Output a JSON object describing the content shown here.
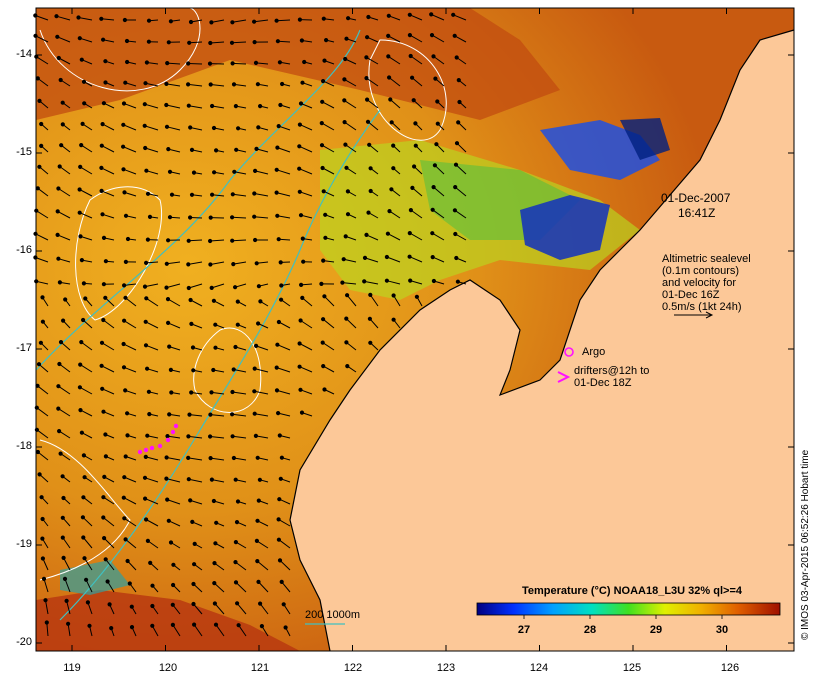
{
  "map": {
    "y_ticks": [
      "-14",
      "-15",
      "-16",
      "-17",
      "-18",
      "-19",
      "-20"
    ],
    "x_ticks": [
      "119",
      "120",
      "121",
      "122",
      "123",
      "124",
      "125",
      "126"
    ],
    "date_line1": "01-Dec-2007",
    "date_line2": "16:41Z",
    "altimetric_lines": [
      "Altimetric sealevel",
      "(0.1m contours)",
      "and velocity for",
      "01-Dec 16Z",
      "0.5m/s (1kt 24h)"
    ],
    "argo_label": "Argo",
    "drifters_line1": "drifters@12h to",
    "drifters_line2": "01-Dec 18Z",
    "depth_label": "200  1000m",
    "colorbar_title": "Temperature (°C) NOAA18_L3U 32% ql>=4",
    "colorbar_ticks": [
      "27",
      "28",
      "29",
      "30"
    ],
    "credit": "© IMOS 03-Apr-2015 06:52:26 Hobart time"
  },
  "colors": {
    "land": "#fcc898",
    "sea_warm": "#e8a020",
    "contour_white": "#ffffff",
    "isobath": "#40c0c0",
    "argo_drifter": "#ff10ff"
  }
}
